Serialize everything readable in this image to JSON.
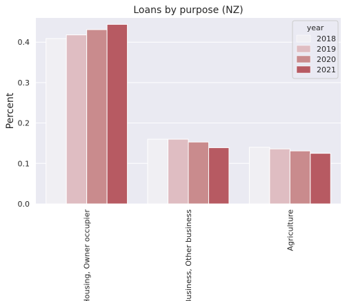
{
  "chart_data": {
    "type": "bar",
    "title": "Loans by purpose (NZ)",
    "xlabel": "",
    "ylabel": "Percent",
    "categories": [
      "Housing, Owner occupier",
      "Business, Other business",
      "Agriculture"
    ],
    "series": [
      {
        "name": "2018",
        "values": [
          0.409,
          0.16,
          0.14
        ],
        "color": "#f0eff3"
      },
      {
        "name": "2019",
        "values": [
          0.418,
          0.16,
          0.136
        ],
        "color": "#dfbdc2"
      },
      {
        "name": "2020",
        "values": [
          0.431,
          0.153,
          0.131
        ],
        "color": "#c98b8d"
      },
      {
        "name": "2021",
        "values": [
          0.444,
          0.139,
          0.125
        ],
        "color": "#b75a62"
      }
    ],
    "ylim": [
      0,
      0.46
    ],
    "yticks": [
      0.0,
      0.1,
      0.2,
      0.3,
      0.4
    ],
    "ytick_labels": [
      "0.0",
      "0.1",
      "0.2",
      "0.3",
      "0.4"
    ],
    "grid": true,
    "legend": {
      "title": "year",
      "position": "top-right"
    },
    "background": "#eaeaf2"
  }
}
